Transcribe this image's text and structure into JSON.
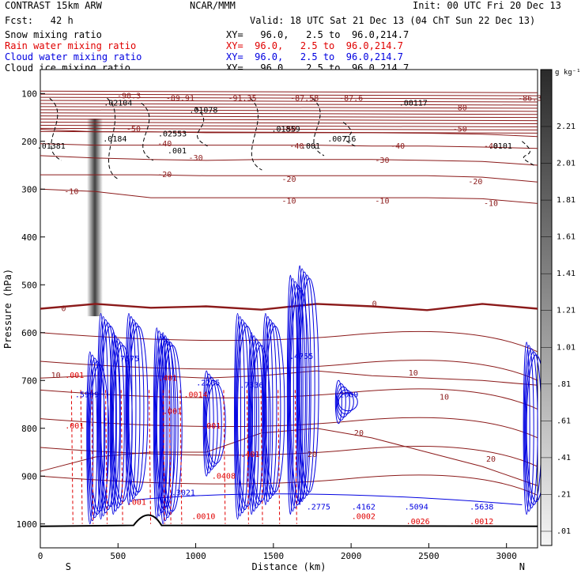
{
  "header": {
    "model": "CONTRAST 15km ARW",
    "org": "NCAR/MMM",
    "init": "Init: 00 UTC Fri 20 Dec 13",
    "fcst": "Fcst:   42 h",
    "valid": "Valid: 18 UTC Sat 21 Dec 13 (04 ChT Sun 22 Dec 13)"
  },
  "legend": [
    {
      "label": "Snow mixing ratio",
      "xy": "XY=   96.0,   2.5 to  96.0,214.7",
      "color": "#000000"
    },
    {
      "label": "Rain water mixing ratio",
      "xy": "XY=  96.0,   2.5 to  96.0,214.7",
      "color": "#e00000"
    },
    {
      "label": "Cloud water mixing ratio",
      "xy": "XY=  96.0,   2.5 to  96.0,214.7",
      "color": "#0000e0"
    },
    {
      "label": "Cloud ice mixing ratio",
      "xy": "XY=   96.0,   2.5 to  96.0,214.7",
      "color": "#000000"
    }
  ],
  "chart_data": {
    "type": "contour cross-section",
    "xlabel": "Distance (km)",
    "ylabel": "Pressure (hPa)",
    "xlim": [
      0,
      3200
    ],
    "ylim": [
      1050,
      50
    ],
    "x_ticks": [
      "0",
      "500",
      "1000",
      "1500",
      "2000",
      "2500",
      "3000"
    ],
    "y_ticks": [
      "100",
      "200",
      "300",
      "400",
      "500",
      "600",
      "700",
      "800",
      "900",
      "1000"
    ],
    "endpoints": [
      "S",
      "N"
    ],
    "colorbar": {
      "unit": "g kg⁻¹",
      "ticks": [
        "2.21",
        "2.01",
        "1.81",
        "1.61",
        "1.41",
        "1.21",
        "1.01",
        ".81",
        ".61",
        ".41",
        ".21",
        ".01"
      ]
    },
    "temperature_contours": [
      {
        "value": 0,
        "label": "0",
        "levels": [
          550,
          540,
          548,
          545,
          552,
          540,
          545,
          553,
          540,
          550
        ],
        "bold": true
      },
      {
        "value": -10,
        "label": "-10",
        "levels": [
          300,
          305,
          318,
          318,
          318,
          318,
          318,
          318,
          320,
          330
        ]
      },
      {
        "value": -20,
        "label": "-20",
        "levels": [
          270,
          270,
          270,
          272,
          272,
          272,
          272,
          272,
          275,
          285
        ]
      },
      {
        "value": -30,
        "label": "-30",
        "levels": [
          230,
          235,
          238,
          240,
          238,
          238,
          238,
          240,
          242,
          250
        ]
      },
      {
        "value": -40,
        "label": "-40",
        "levels": [
          205,
          208,
          208,
          208,
          208,
          208,
          210,
          210,
          212,
          215
        ]
      },
      {
        "value": -50,
        "label": "-50",
        "levels": [
          175,
          180,
          180,
          182,
          182,
          182,
          182,
          183,
          185,
          190
        ]
      },
      {
        "value": 10,
        "label": "10",
        "levels": [
          695,
          690,
          690,
          695,
          690,
          680,
          690,
          695,
          700,
          710
        ]
      },
      {
        "value": 20,
        "label": "20",
        "levels": [
          890,
          860,
          850,
          850,
          810,
          800,
          820,
          850,
          880,
          920
        ]
      }
    ],
    "annotations": [
      {
        "text": "-90.3",
        "x": 570,
        "p": 110
      },
      {
        "text": "-89.91",
        "x": 900,
        "p": 115
      },
      {
        "text": "-91.35",
        "x": 1300,
        "p": 115
      },
      {
        "text": "-87.58",
        "x": 1700,
        "p": 115
      },
      {
        "text": "-87.6",
        "x": 2000,
        "p": 115
      },
      {
        "text": "-86.3",
        "x": 3150,
        "p": 115
      },
      {
        "text": "-80",
        "x": 2700,
        "p": 135
      },
      {
        "text": "-50",
        "x": 600,
        "p": 180
      },
      {
        "text": "-50",
        "x": 1600,
        "p": 180
      },
      {
        "text": "-50",
        "x": 2700,
        "p": 180
      },
      {
        "text": "-40",
        "x": 800,
        "p": 210
      },
      {
        "text": "-40",
        "x": 1650,
        "p": 215
      },
      {
        "text": "-40",
        "x": 2300,
        "p": 215
      },
      {
        "text": "-40",
        "x": 2900,
        "p": 215
      },
      {
        "text": "-30",
        "x": 1000,
        "p": 240
      },
      {
        "text": "-30",
        "x": 2200,
        "p": 245
      },
      {
        "text": "-20",
        "x": 800,
        "p": 275
      },
      {
        "text": "-20",
        "x": 1600,
        "p": 285
      },
      {
        "text": "-20",
        "x": 2800,
        "p": 290
      },
      {
        "text": "-10",
        "x": 200,
        "p": 310
      },
      {
        "text": "-10",
        "x": 1600,
        "p": 330
      },
      {
        "text": "-10",
        "x": 2200,
        "p": 330
      },
      {
        "text": "-10",
        "x": 2900,
        "p": 335
      },
      {
        "text": "0",
        "x": 150,
        "p": 555
      },
      {
        "text": "0",
        "x": 2150,
        "p": 545
      },
      {
        "text": "10",
        "x": 100,
        "p": 695
      },
      {
        "text": "10",
        "x": 2400,
        "p": 690
      },
      {
        "text": "10",
        "x": 2600,
        "p": 740
      },
      {
        "text": "20",
        "x": 1750,
        "p": 860
      },
      {
        "text": "20",
        "x": 2050,
        "p": 815
      },
      {
        "text": "20",
        "x": 2900,
        "p": 870
      },
      {
        "text": ".02104",
        "x": 500,
        "p": 125
      },
      {
        "text": ".01078",
        "x": 1050,
        "p": 140
      },
      {
        "text": ".00117",
        "x": 2400,
        "p": 125
      },
      {
        "text": ".01859",
        "x": 1580,
        "p": 180
      },
      {
        "text": ".00716",
        "x": 1940,
        "p": 200
      },
      {
        "text": ".0184",
        "x": 480,
        "p": 200
      },
      {
        "text": ".02553",
        "x": 850,
        "p": 190
      },
      {
        "text": ".01381",
        "x": 70,
        "p": 215
      },
      {
        "text": ".0101",
        "x": 2960,
        "p": 215
      },
      {
        "text": ".001",
        "x": 880,
        "p": 225
      },
      {
        "text": ".001",
        "x": 1740,
        "p": 215
      },
      {
        "text": ".7575",
        "x": 560,
        "p": 660
      },
      {
        "text": ".5999",
        "x": 300,
        "p": 735
      },
      {
        "text": ".401",
        "x": 820,
        "p": 700
      },
      {
        "text": ".2205",
        "x": 1080,
        "p": 710
      },
      {
        "text": ".7336",
        "x": 1360,
        "p": 715
      },
      {
        "text": ".4755",
        "x": 1680,
        "p": 655
      },
      {
        "text": ".401",
        "x": 1350,
        "p": 860
      },
      {
        "text": ".3021",
        "x": 920,
        "p": 940
      },
      {
        "text": ".2775",
        "x": 1790,
        "p": 970
      },
      {
        "text": ".4162",
        "x": 2080,
        "p": 970
      },
      {
        "text": ".5094",
        "x": 2420,
        "p": 970
      },
      {
        "text": ".5638",
        "x": 2840,
        "p": 970
      },
      {
        "text": ".2009",
        "x": 1970,
        "p": 735
      },
      {
        "text": ".0010",
        "x": 1050,
        "p": 990
      },
      {
        "text": ".0002",
        "x": 2080,
        "p": 990
      },
      {
        "text": ".0026",
        "x": 2430,
        "p": 1000
      },
      {
        "text": ".0012",
        "x": 2840,
        "p": 1000
      },
      {
        "text": ".0408",
        "x": 1180,
        "p": 905
      },
      {
        "text": ".0014",
        "x": 1000,
        "p": 735
      },
      {
        "text": ".001",
        "x": 220,
        "p": 695
      },
      {
        "text": ".001",
        "x": 220,
        "p": 800
      },
      {
        "text": ".001",
        "x": 620,
        "p": 960
      },
      {
        "text": ".001",
        "x": 850,
        "p": 770
      },
      {
        "text": ".001",
        "x": 1100,
        "p": 800
      }
    ]
  }
}
